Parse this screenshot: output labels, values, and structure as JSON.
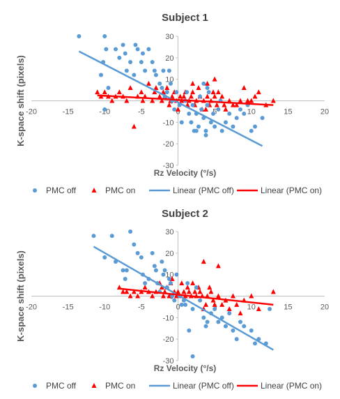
{
  "chart_data": [
    {
      "type": "scatter",
      "title": "Subject 1",
      "xlabel": "Rz Velocity (°/s)",
      "ylabel": "K-space shift (pixels)",
      "xlim": [
        -20,
        20
      ],
      "ylim": [
        -30,
        30
      ],
      "xticks": [
        "-20",
        "-15",
        "-10",
        "-5",
        "0",
        "5",
        "10",
        "15",
        "20"
      ],
      "yticks": [
        "30",
        "20",
        "10",
        "0",
        "-10",
        "-20",
        "-30"
      ],
      "grid": false,
      "legend_position": "bottom",
      "legend": [
        "PMC off",
        "PMC on",
        "Linear (PMC off)",
        "Linear (PMC on)"
      ],
      "colors": {
        "pmc_off": "#5B9BD5",
        "pmc_on": "#FF0000"
      },
      "series": [
        {
          "name": "PMC off",
          "marker": "circle",
          "points": [
            [
              -13.5,
              30
            ],
            [
              -10,
              30
            ],
            [
              -10.2,
              18
            ],
            [
              -10.5,
              12
            ],
            [
              -9.8,
              24
            ],
            [
              -9.5,
              6
            ],
            [
              -10,
              -4
            ],
            [
              -8.5,
              24
            ],
            [
              -8,
              20
            ],
            [
              -7.5,
              26
            ],
            [
              -7.2,
              22
            ],
            [
              -7,
              14
            ],
            [
              -6.5,
              18
            ],
            [
              -6,
              12
            ],
            [
              -5.8,
              26
            ],
            [
              -5.5,
              24
            ],
            [
              -5,
              18
            ],
            [
              -4.8,
              22
            ],
            [
              -4.5,
              14
            ],
            [
              -4,
              24
            ],
            [
              -3.5,
              18
            ],
            [
              -3.2,
              14
            ],
            [
              -3,
              12
            ],
            [
              -2.5,
              8
            ],
            [
              -2.2,
              6
            ],
            [
              -2,
              14
            ],
            [
              -1.8,
              2
            ],
            [
              -1.5,
              4
            ],
            [
              -1.2,
              14
            ],
            [
              -1,
              8
            ],
            [
              -0.8,
              0
            ],
            [
              -0.5,
              -4
            ],
            [
              -0.2,
              4
            ],
            [
              0.2,
              -2
            ],
            [
              0.5,
              -10
            ],
            [
              1,
              0
            ],
            [
              1.2,
              4
            ],
            [
              1.5,
              -6
            ],
            [
              1.8,
              -10
            ],
            [
              2,
              -2
            ],
            [
              2.2,
              -14
            ],
            [
              2.5,
              -6
            ],
            [
              2.8,
              -12
            ],
            [
              3,
              2
            ],
            [
              3.2,
              -4
            ],
            [
              3.5,
              -8
            ],
            [
              3.8,
              -14
            ],
            [
              4,
              -2
            ],
            [
              4.2,
              4
            ],
            [
              4.5,
              -10
            ],
            [
              4.8,
              -6
            ],
            [
              5,
              -12
            ],
            [
              5.5,
              -4
            ],
            [
              5.8,
              0
            ],
            [
              6,
              -14
            ],
            [
              6.5,
              -10
            ],
            [
              7,
              -6
            ],
            [
              7.5,
              -12
            ],
            [
              8,
              -8
            ],
            [
              8.5,
              -4
            ],
            [
              9,
              -6
            ],
            [
              9.5,
              -2
            ],
            [
              10,
              -14
            ],
            [
              10.5,
              -12
            ],
            [
              11.5,
              -8
            ],
            [
              3.5,
              8
            ],
            [
              4,
              6
            ],
            [
              2.5,
              -14
            ],
            [
              3.8,
              -16
            ]
          ]
        },
        {
          "name": "PMC on",
          "marker": "triangle",
          "points": [
            [
              -11,
              4
            ],
            [
              -10.5,
              2
            ],
            [
              -10,
              4
            ],
            [
              -9.5,
              2
            ],
            [
              -9,
              0
            ],
            [
              -8.5,
              2
            ],
            [
              -8,
              4
            ],
            [
              -7.5,
              2
            ],
            [
              -7,
              0
            ],
            [
              -6.5,
              6
            ],
            [
              -6,
              -12
            ],
            [
              -5.5,
              2
            ],
            [
              -5,
              4
            ],
            [
              -4.8,
              0
            ],
            [
              -4.5,
              2
            ],
            [
              -4,
              8
            ],
            [
              -3.5,
              0
            ],
            [
              -3.2,
              4
            ],
            [
              -3,
              6
            ],
            [
              -2.5,
              2
            ],
            [
              -2.2,
              0
            ],
            [
              -2,
              4
            ],
            [
              -1.8,
              2
            ],
            [
              -1.5,
              6
            ],
            [
              -1.2,
              -2
            ],
            [
              -1,
              0
            ],
            [
              -0.8,
              2
            ],
            [
              -0.5,
              4
            ],
            [
              -0.2,
              0
            ],
            [
              0,
              -4
            ],
            [
              0.3,
              2
            ],
            [
              0.5,
              0
            ],
            [
              0.8,
              2
            ],
            [
              1,
              4
            ],
            [
              1.3,
              -2
            ],
            [
              1.5,
              0
            ],
            [
              1.8,
              2
            ],
            [
              2,
              4
            ],
            [
              2.3,
              -2
            ],
            [
              2.5,
              0
            ],
            [
              2.8,
              6
            ],
            [
              3,
              2
            ],
            [
              3.3,
              -4
            ],
            [
              3.5,
              0
            ],
            [
              3.8,
              -4
            ],
            [
              4,
              2
            ],
            [
              4.3,
              -2
            ],
            [
              4.5,
              0
            ],
            [
              4.8,
              4
            ],
            [
              5,
              2
            ],
            [
              5.3,
              -2
            ],
            [
              5.5,
              4
            ],
            [
              5.8,
              0
            ],
            [
              6,
              2
            ],
            [
              6.3,
              -2
            ],
            [
              6.5,
              -4
            ],
            [
              7,
              0
            ],
            [
              7.5,
              -2
            ],
            [
              8,
              -2
            ],
            [
              8.5,
              0
            ],
            [
              9,
              6
            ],
            [
              9.5,
              0
            ],
            [
              10,
              0
            ],
            [
              10.5,
              2
            ],
            [
              11,
              4
            ],
            [
              12,
              -2
            ],
            [
              13,
              0
            ],
            [
              4,
              8
            ],
            [
              5,
              10
            ],
            [
              2,
              8
            ]
          ]
        }
      ],
      "trendlines": [
        {
          "name": "Linear (PMC off)",
          "x": [
            -13.5,
            11.5
          ],
          "y": [
            23,
            -21
          ]
        },
        {
          "name": "Linear (PMC on)",
          "x": [
            -11,
            13
          ],
          "y": [
            2.5,
            -2
          ]
        }
      ]
    },
    {
      "type": "scatter",
      "title": "Subject 2",
      "xlabel": "Rz Velocity (°/s)",
      "ylabel": "K-space shift (pixels)",
      "xlim": [
        -20,
        20
      ],
      "ylim": [
        -30,
        30
      ],
      "xticks": [
        "-20",
        "-15",
        "-10",
        "-5",
        "0",
        "5",
        "10",
        "15",
        "20"
      ],
      "yticks": [
        "30",
        "20",
        "10",
        "0",
        "-10",
        "-20",
        "-30"
      ],
      "grid": false,
      "legend_position": "bottom",
      "legend": [
        "PMC off",
        "PMC on",
        "Linear (PMC off)",
        "Linear (PMC on)"
      ],
      "colors": {
        "pmc_off": "#5B9BD5",
        "pmc_on": "#FF0000"
      },
      "series": [
        {
          "name": "PMC off",
          "marker": "circle",
          "points": [
            [
              -11.5,
              28
            ],
            [
              -9,
              28
            ],
            [
              -10,
              18
            ],
            [
              -8.5,
              16
            ],
            [
              -7.5,
              12
            ],
            [
              -7.2,
              8
            ],
            [
              -7,
              12
            ],
            [
              -6.5,
              30
            ],
            [
              -6,
              24
            ],
            [
              -5.5,
              20
            ],
            [
              -5,
              18
            ],
            [
              -4.8,
              10
            ],
            [
              -4.5,
              6
            ],
            [
              -4,
              8
            ],
            [
              -3.5,
              20
            ],
            [
              -3.2,
              14
            ],
            [
              -3,
              12
            ],
            [
              -2.8,
              6
            ],
            [
              -2.5,
              2
            ],
            [
              -2.2,
              16
            ],
            [
              -2,
              10
            ],
            [
              -1.8,
              12
            ],
            [
              -1.5,
              4
            ],
            [
              -1.2,
              8
            ],
            [
              -1,
              6
            ],
            [
              -0.8,
              0
            ],
            [
              -0.5,
              -2
            ],
            [
              -0.2,
              10
            ],
            [
              0.2,
              0
            ],
            [
              0.5,
              -4
            ],
            [
              0.8,
              -2
            ],
            [
              1,
              -4
            ],
            [
              1.3,
              6
            ],
            [
              1.5,
              -16
            ],
            [
              2,
              -6
            ],
            [
              2.5,
              4
            ],
            [
              3,
              -2
            ],
            [
              3.5,
              -10
            ],
            [
              4,
              -12
            ],
            [
              4.5,
              -8
            ],
            [
              5,
              -6
            ],
            [
              5.5,
              -12
            ],
            [
              6,
              -10
            ],
            [
              6.5,
              -14
            ],
            [
              7,
              -8
            ],
            [
              7.5,
              -16
            ],
            [
              8,
              -20
            ],
            [
              8.5,
              -12
            ],
            [
              9,
              -14
            ],
            [
              10,
              -16
            ],
            [
              10.5,
              -22
            ],
            [
              11,
              -20
            ],
            [
              12,
              -22
            ],
            [
              12.5,
              -6
            ],
            [
              2,
              -28
            ],
            [
              3.8,
              -14
            ]
          ]
        },
        {
          "name": "PMC on",
          "marker": "triangle",
          "points": [
            [
              -8,
              4
            ],
            [
              -7.5,
              2
            ],
            [
              -7,
              2
            ],
            [
              -6.5,
              0
            ],
            [
              -6,
              2
            ],
            [
              -5.5,
              0
            ],
            [
              -5,
              2
            ],
            [
              -4.5,
              4
            ],
            [
              -4,
              2
            ],
            [
              -3.5,
              0
            ],
            [
              -3,
              2
            ],
            [
              -2.5,
              6
            ],
            [
              -2.2,
              4
            ],
            [
              -2,
              0
            ],
            [
              -1.8,
              2
            ],
            [
              -1.5,
              4
            ],
            [
              -1.2,
              0
            ],
            [
              -1,
              6
            ],
            [
              -0.8,
              8
            ],
            [
              -0.5,
              2
            ],
            [
              -0.2,
              0
            ],
            [
              0,
              2
            ],
            [
              0.3,
              0
            ],
            [
              0.5,
              6
            ],
            [
              0.8,
              2
            ],
            [
              1,
              0
            ],
            [
              1.3,
              4
            ],
            [
              1.5,
              2
            ],
            [
              1.8,
              0
            ],
            [
              2,
              6
            ],
            [
              2.3,
              2
            ],
            [
              2.5,
              0
            ],
            [
              2.8,
              4
            ],
            [
              3,
              2
            ],
            [
              3.3,
              0
            ],
            [
              3.5,
              16
            ],
            [
              3.8,
              -4
            ],
            [
              4,
              0
            ],
            [
              4.3,
              4
            ],
            [
              4.5,
              2
            ],
            [
              4.8,
              -2
            ],
            [
              5,
              -4
            ],
            [
              5.5,
              0
            ],
            [
              6,
              -4
            ],
            [
              6.5,
              -2
            ],
            [
              7,
              -6
            ],
            [
              7.5,
              0
            ],
            [
              8,
              -4
            ],
            [
              8.5,
              -8
            ],
            [
              9,
              -2
            ],
            [
              10,
              0
            ],
            [
              11,
              -6
            ],
            [
              13,
              2
            ],
            [
              3.5,
              -6
            ],
            [
              5.5,
              14
            ]
          ]
        }
      ],
      "trendlines": [
        {
          "name": "Linear (PMC off)",
          "x": [
            -11.5,
            13
          ],
          "y": [
            23,
            -25
          ]
        },
        {
          "name": "Linear (PMC on)",
          "x": [
            -8,
            13
          ],
          "y": [
            3.5,
            -4
          ]
        }
      ]
    }
  ]
}
